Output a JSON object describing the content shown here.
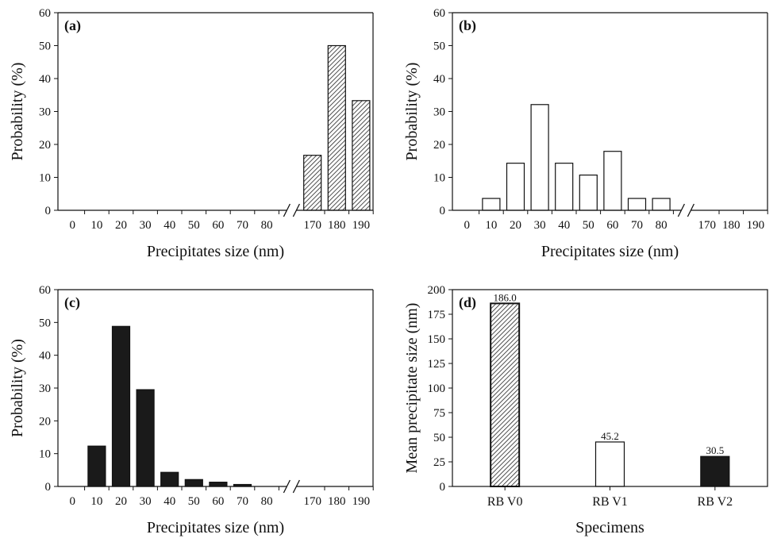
{
  "chart_data": [
    {
      "type": "bar",
      "panel_label": "(a)",
      "xlabel": "Precipitates size (nm)",
      "ylabel": "Probability (%)",
      "ylim": [
        0,
        60
      ],
      "yticks": [
        "0",
        "10",
        "20",
        "30",
        "40",
        "50",
        "60"
      ],
      "categories": [
        "0",
        "10",
        "20",
        "30",
        "40",
        "50",
        "60",
        "70",
        "80",
        "170",
        "180",
        "190"
      ],
      "values": [
        0,
        0,
        0,
        0,
        0,
        0,
        0,
        0,
        0,
        16.7,
        50.0,
        33.3
      ],
      "fill": "hatch",
      "axis_break": true
    },
    {
      "type": "bar",
      "panel_label": "(b)",
      "xlabel": "Precipitates size (nm)",
      "ylabel": "Probability (%)",
      "ylim": [
        0,
        60
      ],
      "yticks": [
        "0",
        "10",
        "20",
        "30",
        "40",
        "50",
        "60"
      ],
      "categories": [
        "0",
        "10",
        "20",
        "30",
        "40",
        "50",
        "60",
        "70",
        "80",
        "170",
        "180",
        "190"
      ],
      "values": [
        0,
        3.6,
        14.3,
        32.1,
        14.3,
        10.7,
        17.9,
        3.6,
        3.6,
        0,
        0,
        0
      ],
      "fill": "white",
      "axis_break": true
    },
    {
      "type": "bar",
      "panel_label": "(c)",
      "xlabel": "Precipitates size (nm)",
      "ylabel": "Probability (%)",
      "ylim": [
        0,
        60
      ],
      "yticks": [
        "0",
        "10",
        "20",
        "30",
        "40",
        "50",
        "60"
      ],
      "categories": [
        "0",
        "10",
        "20",
        "30",
        "40",
        "50",
        "60",
        "70",
        "80",
        "170",
        "180",
        "190"
      ],
      "values": [
        0,
        12.3,
        48.8,
        29.5,
        4.3,
        2.1,
        1.3,
        0.6,
        0,
        0,
        0,
        0
      ],
      "fill": "black",
      "axis_break": true
    },
    {
      "type": "bar",
      "panel_label": "(d)",
      "xlabel": "Specimens",
      "ylabel": "Mean precipitate size (nm)",
      "ylim": [
        0,
        200
      ],
      "yticks": [
        "0",
        "25",
        "50",
        "75",
        "100",
        "125",
        "150",
        "175",
        "200"
      ],
      "categories": [
        "RB V0",
        "RB V1",
        "RB V2"
      ],
      "values": [
        186.0,
        45.2,
        30.5
      ],
      "data_labels": [
        "186.0",
        "45.2",
        "30.5"
      ],
      "fills": [
        "hatch",
        "white",
        "black"
      ]
    }
  ],
  "colors": {
    "axis": "#111111",
    "bar_black": "#1a1a1a",
    "bar_white": "#ffffff",
    "hatch_line": "#222222"
  }
}
